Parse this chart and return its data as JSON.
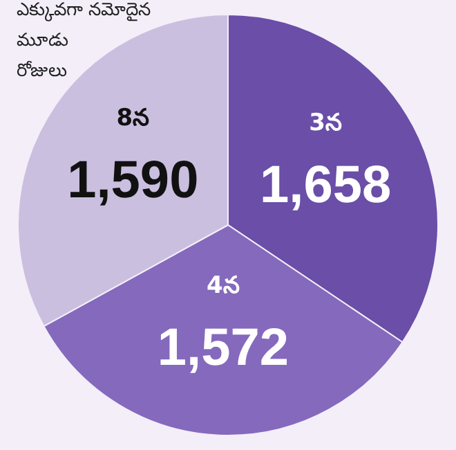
{
  "chart_data": {
    "type": "pie",
    "title": "ఎక్కువగా నమోదైన\nమూడు\nరోజులు",
    "categories": [
      "3న",
      "4న",
      "8న"
    ],
    "values": [
      1658,
      1572,
      1590
    ],
    "value_labels": [
      "1,658",
      "1,572",
      "1,590"
    ],
    "colors": [
      "#6a4ea8",
      "#8569bd",
      "#cbbfe0"
    ],
    "legend": false
  }
}
